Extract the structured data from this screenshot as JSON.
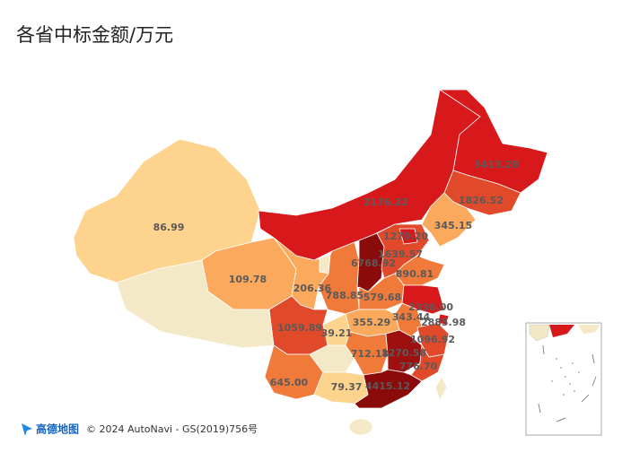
{
  "title": "各省中标金额/万元",
  "attribution": {
    "logo": "高德地图",
    "text": "© 2024 AutoNavi - GS(2019)756号"
  },
  "regions": {
    "values": [
      86.99,
      109.78,
      2176.22,
      3413.28,
      1826.52,
      345.15,
      206.36,
      788.85,
      6768.92,
      1639.57,
      1270.2,
      890.81,
      579.68,
      2336,
      343.44,
      2885.98,
      1096.92,
      355.29,
      39.21,
      1059.89,
      712.18,
      1270.58,
      776.7,
      645,
      79.37,
      4415.12
    ],
    "value_labels": [
      "86.99",
      "109.78",
      "2176.22",
      "3413.28",
      "1826.52",
      "345.15",
      "206.36",
      "788.85",
      "6768.92",
      "1639.57",
      "1270.20",
      "890.81",
      "579.68",
      "2336.00",
      "343.44",
      "2885.98",
      "1096.92",
      "355.29",
      "39.21",
      "1059.89",
      "712.18",
      "1270.58",
      "776.70",
      "645.00",
      "79.37",
      "4415.12"
    ],
    "colors": [
      "#fed38d",
      "#fba95c",
      "#d7191c",
      "#d7191c",
      "#e04a2a",
      "#fba95c",
      "#fba95c",
      "#f07a3a",
      "#8b0a0a",
      "#e04a2a",
      "#d7191c",
      "#f07a3a",
      "#f07a3a",
      "#d7191c",
      "#f07a3a",
      "#d7191c",
      "#e04a2a",
      "#fba95c",
      "#fed38d",
      "#e04a2a",
      "#f07a3a",
      "#9e1010",
      "#e04a2a",
      "#f07a3a",
      "#fed38d",
      "#8b0a0a"
    ]
  },
  "no_data_color": "#f3e9c6"
}
